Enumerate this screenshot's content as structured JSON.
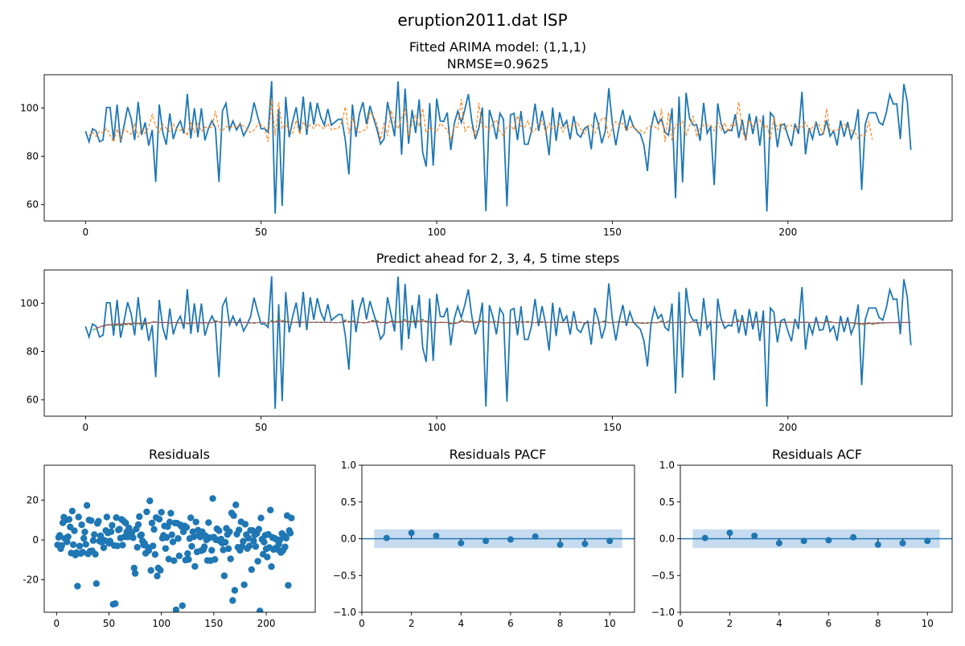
{
  "figure": {
    "suptitle": "eruption2011.dat ISP"
  },
  "colors": {
    "observed": "#1f77b4",
    "fitted": "#ff7f0e",
    "predict_2": "#2ca02c",
    "predict_3": "#d62728",
    "predict_4": "#9467bd",
    "predict_5": "#8c564b",
    "band": "#c6dbef"
  },
  "chart_data": [
    {
      "id": "fit",
      "type": "line",
      "title_line1": "Fitted ARIMA model: (1,1,1)",
      "title_line2": "NRMSE=0.9625",
      "xlabel": "",
      "ylabel": "",
      "xlim": [
        -11.75,
        246.75
      ],
      "ylim": [
        53.25,
        113.75
      ],
      "xticks": [
        0,
        50,
        100,
        150,
        200
      ],
      "yticks": [
        60,
        80,
        100
      ],
      "grid": false,
      "series": [
        {
          "style": "solid",
          "x_start": 0,
          "values": [
            90.4,
            86.0,
            91.4,
            90.5,
            86.0,
            86.8,
            100.2,
            100.2,
            86.6,
            101.4,
            85.7,
            92.8,
            100.4,
            95.6,
            86.7,
            102.5,
            88.9,
            94.0,
            84.4,
            90.9,
            69.4,
            101.4,
            90.0,
            84.8,
            97.8,
            87.1,
            91.9,
            94.6,
            89.4,
            105.8,
            87.3,
            99.9,
            87.9,
            99.9,
            86.6,
            91.5,
            94.7,
            91.6,
            69.4,
            98.7,
            101.9,
            91.0,
            94.6,
            90.9,
            93.5,
            88.5,
            91.1,
            94.5,
            102.3,
            96.5,
            91.4,
            91.4,
            90.0,
            111.1,
            56.3,
            99.6,
            59.5,
            104.6,
            87.9,
            94.6,
            100.3,
            90.0,
            104.7,
            88.8,
            102.5,
            93.1,
            102.1,
            96.1,
            92.9,
            99.6,
            92.9,
            94.1,
            95.3,
            95.3,
            86.4,
            72.5,
            101.4,
            88.0,
            97.5,
            102.4,
            93.3,
            100.9,
            95.9,
            91.1,
            85.1,
            87.2,
            102.5,
            95.4,
            88.3,
            111.0,
            80.6,
            108.0,
            85.2,
            99.2,
            89.6,
            103.5,
            81.7,
            75.7,
            102.0,
            76.1,
            103.9,
            94.6,
            94.4,
            98.1,
            82.6,
            93.6,
            98.7,
            94.0,
            99.3,
            105.7,
            94.5,
            87.1,
            91.7,
            100.2,
            57.3,
            99.2,
            94.3,
            87.1,
            97.8,
            95.3,
            59.3,
            97.1,
            97.8,
            86.7,
            98.7,
            85.0,
            85.0,
            90.6,
            101.8,
            90.5,
            98.8,
            91.4,
            80.4,
            100.2,
            86.4,
            98.2,
            92.4,
            94.7,
            87.0,
            96.7,
            89.2,
            87.9,
            91.4,
            92.5,
            82.9,
            98.1,
            93.4,
            85.4,
            90.5,
            108.2,
            93.5,
            84.6,
            92.9,
            99.3,
            90.6,
            96.4,
            92.2,
            90.6,
            89.2,
            84.5,
            73.9,
            91.4,
            98.2,
            93.7,
            95.3,
            90.0,
            88.7,
            99.9,
            62.7,
            104.7,
            69.2,
            106.3,
            95.7,
            92.9,
            93.1,
            86.4,
            102.1,
            89.5,
            92.2,
            68.1,
            101.9,
            93.4,
            89.6,
            90.9,
            90.6,
            97.4,
            87.6,
            95.1,
            86.6,
            97.6,
            89.2,
            96.6,
            84.4,
            97.0,
            57.2,
            98.0,
            96.3,
            83.8,
            92.8,
            93.4,
            88.4,
            84.2,
            93.5,
            89.3,
            106.7,
            80.8,
            91.7,
            87.2,
            94.3,
            88.8,
            89.1,
            94.9,
            88.3,
            90.5,
            84.5,
            94.8,
            88.1,
            94.2,
            87.3,
            91.1,
            99.5,
            66.1,
            93.1,
            98.0,
            98.0,
            98.0,
            94.0,
            93.0,
            98.0,
            105.6,
            101.6,
            101.7,
            87.1,
            109.9,
            102.4,
            82.6
          ]
        },
        {
          "style": "dashed",
          "x_start": 1,
          "values": [
            88.5,
            90.1,
            88.2,
            90.4,
            89.6,
            91.6,
            88.8,
            85.9,
            91.4,
            86.7,
            91.2,
            90.1,
            89.1,
            93.3,
            88.0,
            91.3,
            89.4,
            92.0,
            97.3,
            92.6,
            89.9,
            93.1,
            91.6,
            90.2,
            93.3,
            91.1,
            90.6,
            91.6,
            88.5,
            94.3,
            89.9,
            93.6,
            90.2,
            92.1,
            91.8,
            92.0,
            98.8,
            91.3,
            90.4,
            92.5,
            91.6,
            92.5,
            92.0,
            93.4,
            92.4,
            91.4,
            89.8,
            90.8,
            93.0,
            93.1,
            92.0,
            85.9,
            103.8,
            88.6,
            102.4,
            91.5,
            93.4,
            90.9,
            89.6,
            94.9,
            89.1,
            94.4,
            91.4,
            93.0,
            91.5,
            93.6,
            92.1,
            91.4,
            93.6,
            90.9,
            91.4,
            91.5,
            94.2,
            100.5,
            89.3,
            95.9,
            91.7,
            89.8,
            90.7,
            91.1,
            98.3,
            96.4,
            93.6,
            86.8,
            93.9,
            88.4,
            99.1,
            93.6,
            91.4,
            95.9,
            99.5,
            88.2,
            93.9,
            96.9,
            92.3,
            99.8,
            89.8,
            91.6,
            91.3,
            90.0,
            93.7,
            92.1,
            91.1,
            86.9,
            92.4,
            92.0,
            103.6,
            90.3,
            92.3,
            91.9,
            88.1,
            102.1,
            91.7,
            92.4,
            90.8,
            93.6,
            95.1,
            90.2,
            88.5,
            92.3,
            93.0,
            90.8,
            96.8,
            92.4,
            91.9,
            94.8,
            89.9,
            90.7,
            93.7,
            94.7,
            89.8,
            93.7,
            91.2,
            92.4,
            93.3,
            90.0,
            93.2,
            92.4,
            92.6,
            94.1,
            91.3,
            89.3,
            92.5,
            93.2,
            89.4,
            92.3,
            95.8,
            95.7,
            87.4,
            92.1,
            94.4,
            92.8,
            93.7,
            90.6,
            91.8,
            92.8,
            90.2,
            90.8,
            89.5,
            91.9,
            92.6,
            92.4,
            91.0,
            99.7,
            85.9,
            98.2,
            86.4,
            93.1,
            92.5,
            94.5,
            88.7,
            92.8,
            96.6,
            88.1,
            91.6,
            93.0,
            92.8,
            92.9,
            90.6,
            94.0,
            90.8,
            93.9,
            90.0,
            93.6,
            92.6,
            102.5,
            90.4,
            87.1,
            95.1,
            92.5,
            93.4,
            95.1,
            91.6,
            92.9,
            87.0,
            96.0,
            91.0,
            93.9,
            91.1,
            92.9,
            92.8,
            90.7,
            93.1,
            91.7,
            94.2,
            90.5,
            92.0,
            93.5,
            92.9,
            88.9,
            99.7,
            90.5,
            90.5,
            90.8,
            91.6,
            93.4,
            92.0,
            90.8,
            90.2,
            87.3,
            88.9,
            88.4,
            94.6,
            87.0
          ]
        }
      ]
    },
    {
      "id": "predict",
      "type": "line",
      "title": "Predict ahead for 2, 3, 4, 5 time steps",
      "xlabel": "",
      "ylabel": "",
      "xlim": [
        -11.75,
        246.75
      ],
      "ylim": [
        53.25,
        113.75
      ],
      "xticks": [
        0,
        50,
        100,
        150,
        200
      ],
      "yticks": [
        60,
        80,
        100
      ],
      "grid": false,
      "series": [
        {
          "style": "solid",
          "ref": "fit.0"
        },
        {
          "style": "dashed",
          "horizon": 2,
          "x_start": 2,
          "x_end": 235,
          "ramp_from": 87.5
        },
        {
          "style": "dashed",
          "horizon": 3,
          "x_start": 3,
          "x_end": 235,
          "ramp_from": 88.5
        },
        {
          "style": "dashed",
          "horizon": 4,
          "x_start": 4,
          "x_end": 235,
          "ramp_from": 89.0
        },
        {
          "style": "dashed",
          "horizon": 5,
          "x_start": 5,
          "x_end": 235,
          "ramp_from": 89.5
        }
      ]
    },
    {
      "id": "residuals",
      "type": "scatter",
      "title": "Residuals",
      "xlabel": "",
      "ylabel": "",
      "xlim": [
        -11.75,
        246.75
      ],
      "ylim": [
        -36.3,
        37.5
      ],
      "xticks": [
        0,
        50,
        100,
        150,
        200
      ],
      "yticks": [
        -20,
        0,
        20
      ],
      "grid": false,
      "note_y": "residual = observed - fitted at same x"
    },
    {
      "id": "pacf",
      "type": "stem",
      "title": "Residuals PACF",
      "xlabel": "",
      "ylabel": "",
      "xlim": [
        0,
        11
      ],
      "ylim": [
        -1.0,
        1.0
      ],
      "xticks": [
        0,
        2,
        4,
        6,
        8,
        10
      ],
      "yticks": [
        -1.0,
        -0.5,
        0.0,
        0.5,
        1.0
      ],
      "ytick_labels": [
        "−1.0",
        "−0.5",
        "0.0",
        "0.5",
        "1.0"
      ],
      "lags": [
        1,
        2,
        3,
        4,
        5,
        6,
        7,
        8,
        9,
        10
      ],
      "values": [
        0.01,
        0.08,
        0.04,
        -0.06,
        -0.03,
        -0.01,
        0.03,
        -0.08,
        -0.07,
        -0.03
      ],
      "confidence_band": [
        -0.127,
        0.127
      ],
      "band_x": [
        0.5,
        10.5
      ]
    },
    {
      "id": "acf",
      "type": "stem",
      "title": "Residuals ACF",
      "xlabel": "",
      "ylabel": "",
      "xlim": [
        0,
        11
      ],
      "ylim": [
        -1.0,
        1.0
      ],
      "xticks": [
        0,
        2,
        4,
        6,
        8,
        10
      ],
      "yticks": [
        -1.0,
        -0.5,
        0.0,
        0.5,
        1.0
      ],
      "ytick_labels": [
        "−1.0",
        "−0.5",
        "0.0",
        "0.5",
        "1.0"
      ],
      "lags": [
        1,
        2,
        3,
        4,
        5,
        6,
        7,
        8,
        9,
        10
      ],
      "values": [
        0.01,
        0.08,
        0.04,
        -0.06,
        -0.03,
        -0.02,
        0.02,
        -0.08,
        -0.06,
        -0.03
      ],
      "confidence_band": [
        -0.127,
        0.127
      ],
      "band_x": [
        0.5,
        10.5
      ]
    }
  ]
}
